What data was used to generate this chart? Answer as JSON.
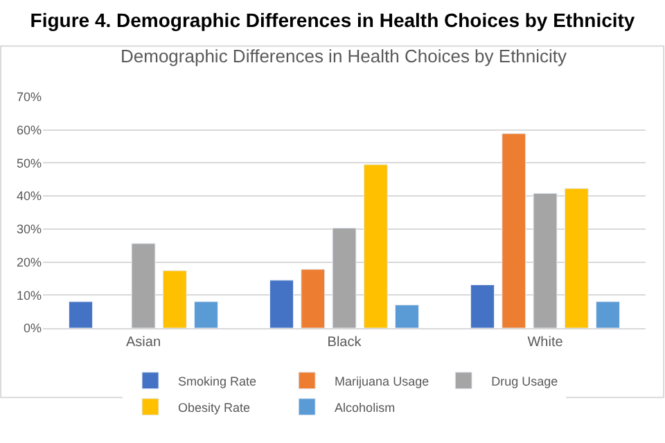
{
  "chart_data": {
    "type": "bar",
    "title": "Figure 4. Demographic Differences in Health Choices by Ethnicity",
    "subtitle": "Demographic Differences in Health Choices by Ethnicity",
    "categories": [
      "Asian",
      "Black",
      "White"
    ],
    "series": [
      {
        "name": "Smoking Rate",
        "color": "#4472c4",
        "values": [
          8.0,
          14.5,
          13.1
        ]
      },
      {
        "name": "Marijuana Usage",
        "color": "#ed7d31",
        "values": [
          null,
          17.8,
          58.9
        ]
      },
      {
        "name": "Drug Usage",
        "color": "#a5a5a5",
        "values": [
          25.6,
          30.3,
          40.8
        ]
      },
      {
        "name": "Obesity Rate",
        "color": "#ffc000",
        "values": [
          17.4,
          49.5,
          42.3
        ]
      },
      {
        "name": "Alcoholism",
        "color": "#5b9bd5",
        "values": [
          8.0,
          7.0,
          8.0
        ]
      }
    ],
    "ylim": [
      0,
      70
    ],
    "yticks": [
      {
        "value": 0,
        "label": "0%"
      },
      {
        "value": 10,
        "label": "10%"
      },
      {
        "value": 20,
        "label": "20%"
      },
      {
        "value": 30,
        "label": "30%"
      },
      {
        "value": 40,
        "label": "40%"
      },
      {
        "value": 50,
        "label": "50%"
      },
      {
        "value": 60,
        "label": "60%"
      },
      {
        "value": 70,
        "label": "70%"
      }
    ],
    "grid": "y",
    "legend": "bottom"
  }
}
